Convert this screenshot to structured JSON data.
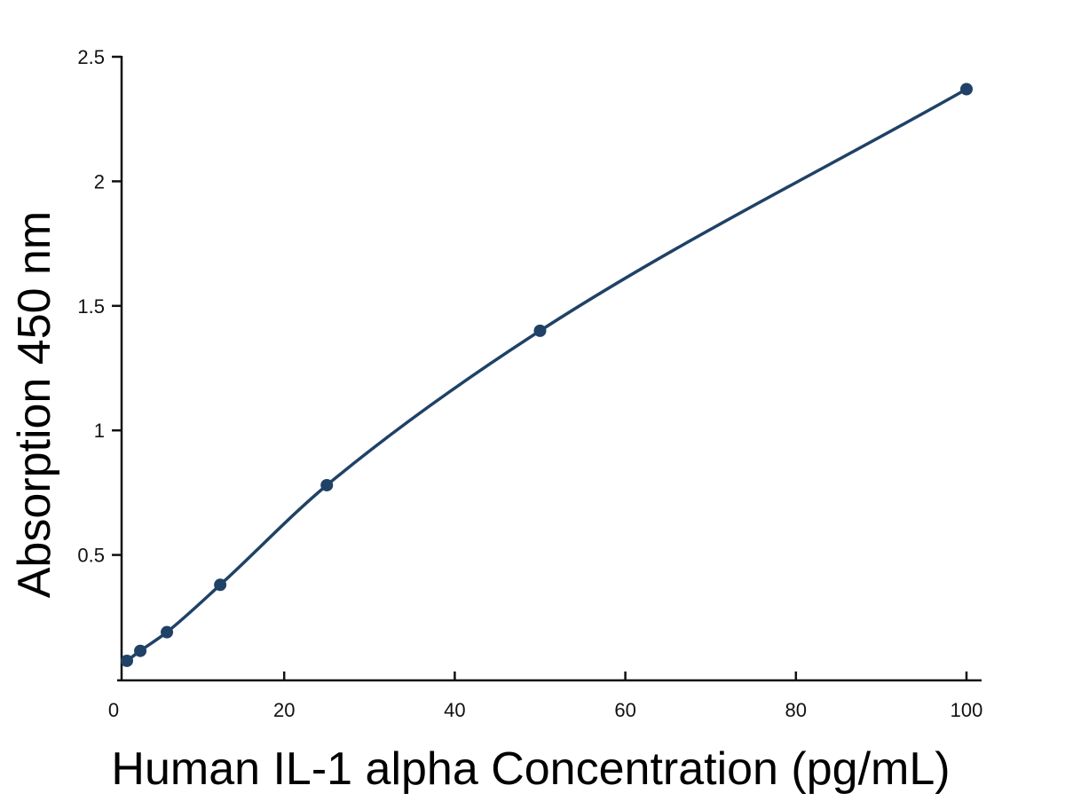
{
  "chart_data": {
    "type": "line",
    "title": "",
    "xlabel": "Human IL-1 alpha Concentration (pg/mL)",
    "ylabel": "Absorption 450 nm",
    "xlim": [
      0,
      100
    ],
    "ylim": [
      0,
      2.5
    ],
    "x_ticks": [
      0,
      20,
      40,
      60,
      80,
      100
    ],
    "y_ticks": [
      0.5,
      1,
      1.5,
      2,
      2.5
    ],
    "grid": false,
    "series": [
      {
        "x": [
          1.56,
          3.13,
          6.25,
          12.5,
          25,
          50,
          100
        ],
        "y": [
          0.075,
          0.115,
          0.19,
          0.38,
          0.78,
          1.4,
          2.37
        ],
        "color": "#1f4266",
        "marker": "circle",
        "curve": "smooth"
      }
    ]
  }
}
